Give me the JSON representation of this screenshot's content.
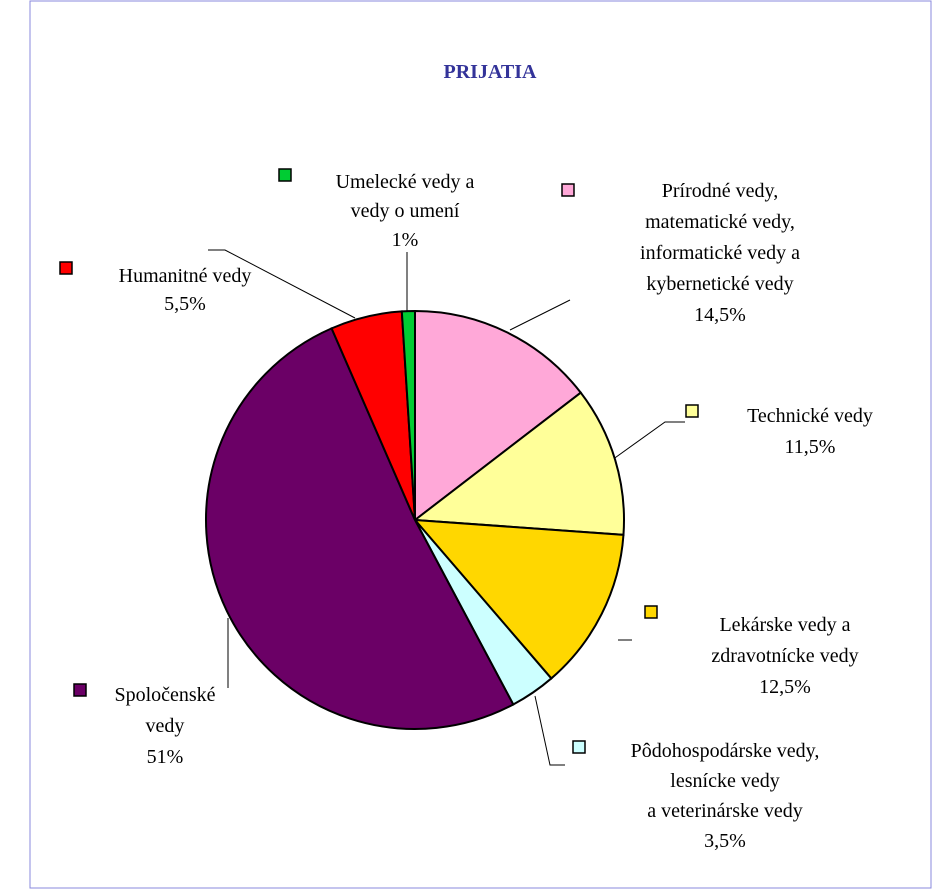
{
  "chart_data": {
    "type": "pie",
    "title": "PRIJATIA",
    "categories": [
      [
        "Prírodné vedy,",
        "matematické vedy,",
        "informatické vedy a",
        "kybernetické vedy"
      ],
      [
        "Technické vedy"
      ],
      [
        "Lekárske vedy a",
        "zdravotnícke vedy"
      ],
      [
        "Pôdohospodárske vedy,",
        "lesnícke vedy",
        "a veterinárske vedy"
      ],
      [
        "Spoločenské",
        "vedy"
      ],
      [
        "Humanitné vedy"
      ],
      [
        "Umelecké vedy a",
        "vedy o umení"
      ]
    ],
    "values": [
      14.5,
      11.5,
      12.5,
      3.5,
      51,
      5.5,
      1
    ],
    "value_labels": [
      "14,5%",
      "11,5%",
      "12,5%",
      "3,5%",
      "51%",
      "5,5%",
      "1%"
    ],
    "colors": [
      "#ffa8d8",
      "#ffff99",
      "#ffd700",
      "#ccffff",
      "#6b0066",
      "#ff0000",
      "#00cc33"
    ]
  }
}
